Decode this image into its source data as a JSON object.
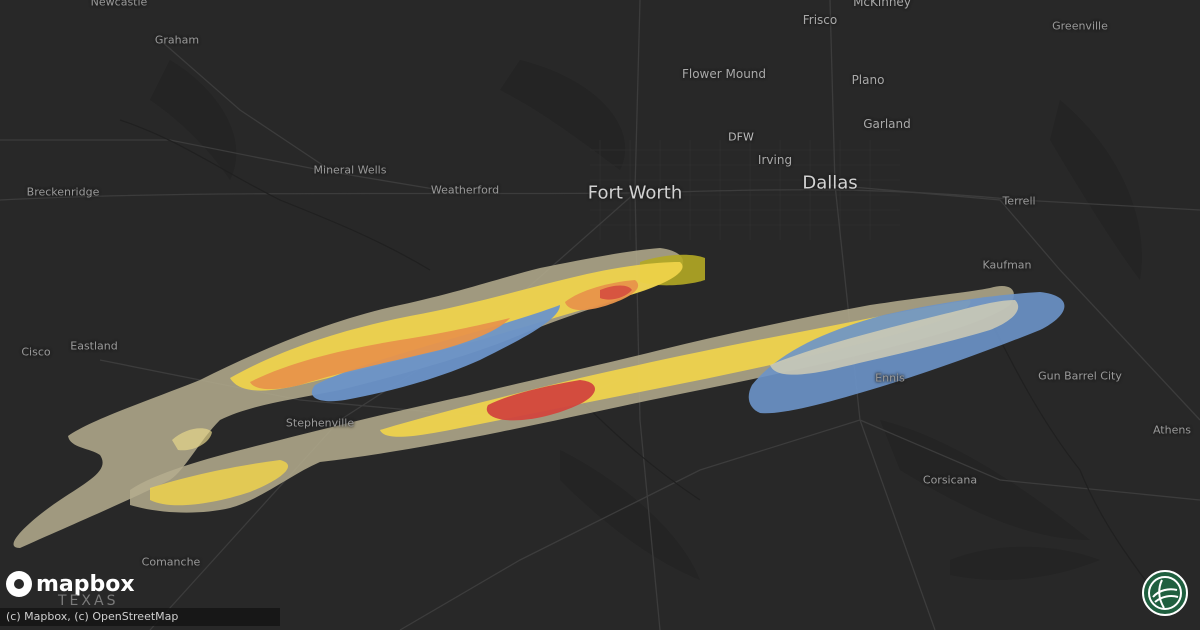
{
  "map": {
    "places": [
      {
        "id": "newcastle",
        "label": "Newcastle",
        "size": "small"
      },
      {
        "id": "graham",
        "label": "Graham",
        "size": "small"
      },
      {
        "id": "breckenridge",
        "label": "Breckenridge",
        "size": "small"
      },
      {
        "id": "mineral-wells",
        "label": "Mineral Wells",
        "size": "small"
      },
      {
        "id": "weatherford",
        "label": "Weatherford",
        "size": "small"
      },
      {
        "id": "fort-worth",
        "label": "Fort Worth",
        "size": "big"
      },
      {
        "id": "dallas",
        "label": "Dallas",
        "size": "big"
      },
      {
        "id": "dfw",
        "label": "DFW",
        "size": "airport"
      },
      {
        "id": "flower-mound",
        "label": "Flower Mound",
        "size": "normal"
      },
      {
        "id": "frisco",
        "label": "Frisco",
        "size": "normal"
      },
      {
        "id": "mckinney",
        "label": "McKinney",
        "size": "normal"
      },
      {
        "id": "plano",
        "label": "Plano",
        "size": "normal"
      },
      {
        "id": "garland",
        "label": "Garland",
        "size": "normal"
      },
      {
        "id": "irving",
        "label": "Irving",
        "size": "normal"
      },
      {
        "id": "greenville",
        "label": "Greenville",
        "size": "small"
      },
      {
        "id": "terrell",
        "label": "Terrell",
        "size": "small"
      },
      {
        "id": "kaufman",
        "label": "Kaufman",
        "size": "small"
      },
      {
        "id": "cisco",
        "label": "Cisco",
        "size": "small"
      },
      {
        "id": "eastland",
        "label": "Eastland",
        "size": "small"
      },
      {
        "id": "stephenville",
        "label": "Stephenville",
        "size": "small"
      },
      {
        "id": "ennis",
        "label": "Ennis",
        "size": "small"
      },
      {
        "id": "gun-barrel-city",
        "label": "Gun Barrel City",
        "size": "small"
      },
      {
        "id": "athens",
        "label": "Athens",
        "size": "small"
      },
      {
        "id": "corsicana",
        "label": "Corsicana",
        "size": "small"
      },
      {
        "id": "comanche",
        "label": "Comanche",
        "size": "small"
      }
    ],
    "colors": {
      "background": "#282828",
      "swath_outer": "#b5ad8e",
      "swath_yellow": "#f2d54a",
      "swath_orange": "#e8934a",
      "swath_red": "#d2453d",
      "swath_blue": "#6c93c9",
      "swath_olive": "#b3a824"
    }
  },
  "logo": {
    "text": "mapbox",
    "region": "TEXAS",
    "icon": "mapbox-logo-icon"
  },
  "attribution": {
    "text": "(c) Mapbox, (c) OpenStreetMap"
  },
  "badge": {
    "icon": "brand-globe-icon"
  }
}
